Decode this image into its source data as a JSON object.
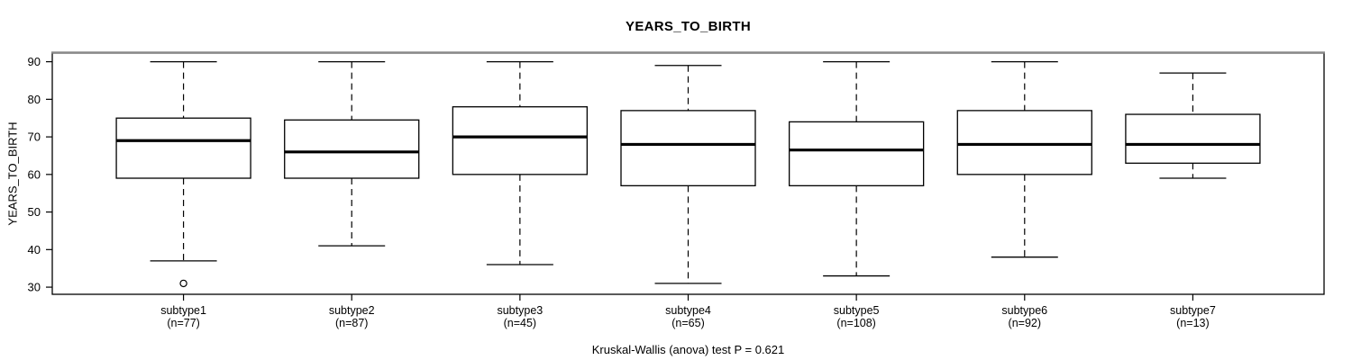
{
  "chart_data": {
    "type": "boxplot",
    "title": "YEARS_TO_BIRTH",
    "ylabel": "YEARS_TO_BIRTH",
    "footer": "Kruskal-Wallis (anova) test P = 0.621",
    "yticks": [
      30,
      40,
      50,
      60,
      70,
      80,
      90
    ],
    "ylim": [
      28.1,
      92.3
    ],
    "grid": false,
    "groups": [
      {
        "label": "subtype1",
        "sublabel": "(n=77)",
        "n": 77,
        "whisker_low": 37,
        "q1": 59,
        "median": 69,
        "q3": 75,
        "whisker_high": 90,
        "outliers": [
          31
        ]
      },
      {
        "label": "subtype2",
        "sublabel": "(n=87)",
        "n": 87,
        "whisker_low": 41,
        "q1": 59,
        "median": 66,
        "q3": 74.5,
        "whisker_high": 90,
        "outliers": []
      },
      {
        "label": "subtype3",
        "sublabel": "(n=45)",
        "n": 45,
        "whisker_low": 36,
        "q1": 60,
        "median": 70,
        "q3": 78,
        "whisker_high": 90,
        "outliers": []
      },
      {
        "label": "subtype4",
        "sublabel": "(n=65)",
        "n": 65,
        "whisker_low": 31,
        "q1": 57,
        "median": 68,
        "q3": 77,
        "whisker_high": 89,
        "outliers": []
      },
      {
        "label": "subtype5",
        "sublabel": "(n=108)",
        "n": 108,
        "whisker_low": 33,
        "q1": 57,
        "median": 66.5,
        "q3": 74,
        "whisker_high": 90,
        "outliers": []
      },
      {
        "label": "subtype6",
        "sublabel": "(n=92)",
        "n": 92,
        "whisker_low": 38,
        "q1": 60,
        "median": 68,
        "q3": 77,
        "whisker_high": 90,
        "outliers": []
      },
      {
        "label": "subtype7",
        "sublabel": "(n=13)",
        "n": 13,
        "whisker_low": 59,
        "q1": 63,
        "median": 68,
        "q3": 76,
        "whisker_high": 87,
        "outliers": []
      }
    ],
    "colors": {
      "line": "#000000",
      "frame_top": "#8a8a8a",
      "box_fill": "#ffffff",
      "background": "#ffffff"
    }
  }
}
